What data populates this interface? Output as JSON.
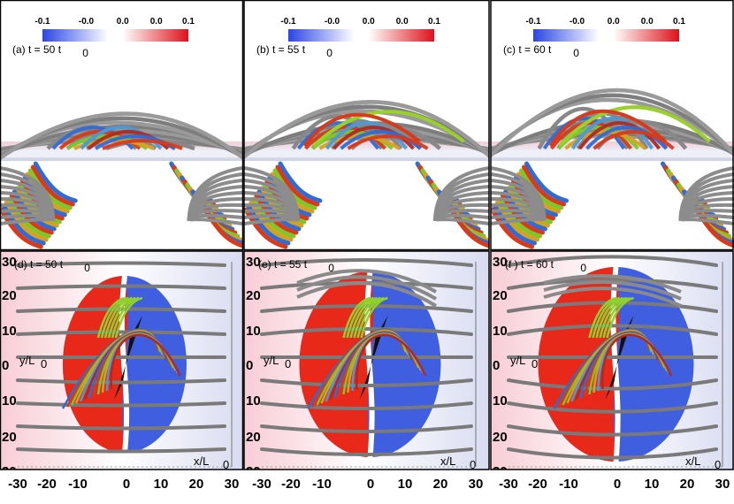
{
  "figure": {
    "top_panels": [
      {
        "label": "(a)  t = 50 t",
        "sub": "0"
      },
      {
        "label": "(b)  t = 55 t",
        "sub": "0"
      },
      {
        "label": "(c)  t = 60 t",
        "sub": "0"
      }
    ],
    "bottom_panels": [
      {
        "label": "(d)  t = 50 t",
        "sub": "0"
      },
      {
        "label": "(e)  t = 55 t",
        "sub": "0"
      },
      {
        "label": "(f )  t = 60 t",
        "sub": "0"
      }
    ],
    "colorbar_ticks": [
      "-0.1",
      "-0.0",
      "0.0",
      "0.0",
      "0.1"
    ],
    "x_ticks": [
      "-30",
      "-20",
      "-10",
      "0",
      "10",
      "20",
      "30"
    ],
    "y_ticks": [
      "30",
      "20",
      "10",
      "0",
      "10",
      "20",
      "30"
    ],
    "x_axis_label": "x/L",
    "y_axis_label": "y/L",
    "axis_sub": "0",
    "colors": {
      "negative": "#2f56e8",
      "positive": "#e8261c",
      "fieldline_gray": "#8a8a8a",
      "bg_pink": "#f7d6dc",
      "bg_blue": "#dfe2f2"
    }
  }
}
